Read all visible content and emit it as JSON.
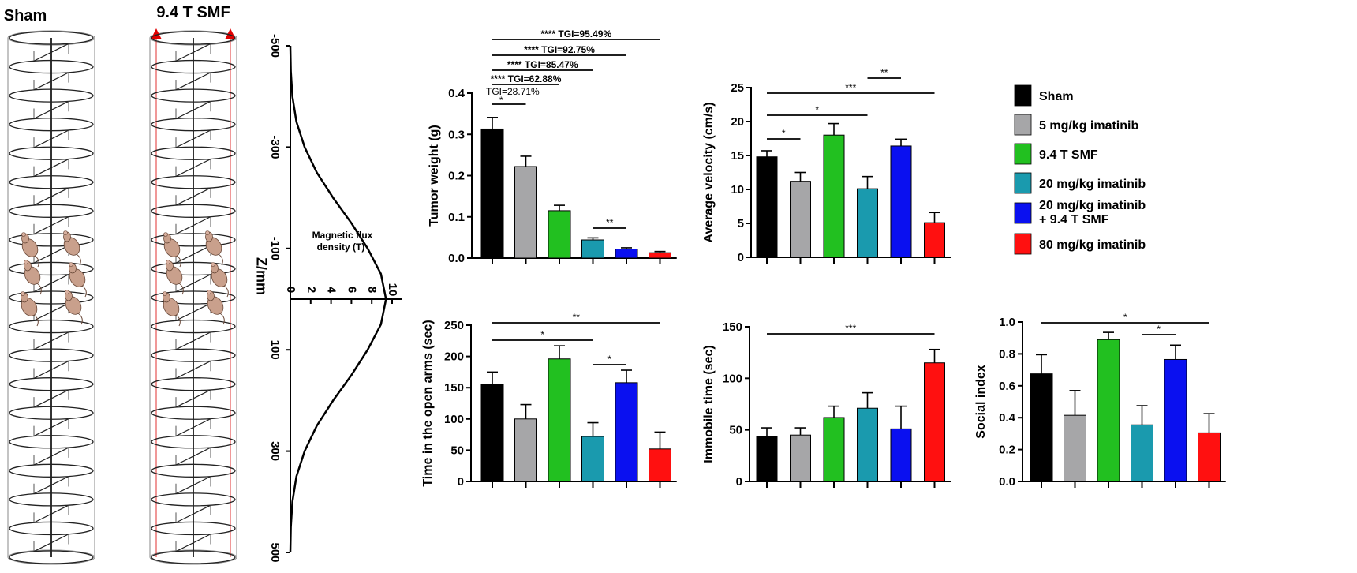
{
  "colors": {
    "Sham": "#000000",
    "5 mg/kg imatinib": "#a6a6a8",
    "9.4 T SMF": "#22c020",
    "20 mg/kg imatinib": "#1a9aae",
    "20 mg/kg imatinib + 9.4 T SMF": "#0a10f0",
    "80 mg/kg imatinib": "#ff1010"
  },
  "legend": [
    {
      "label": "Sham",
      "color": "#000000"
    },
    {
      "label": "5 mg/kg imatinib",
      "color": "#a6a6a8"
    },
    {
      "label": "9.4 T SMF",
      "color": "#22c020"
    },
    {
      "label": "20 mg/kg imatinib",
      "color": "#1a9aae"
    },
    {
      "label": "20 mg/kg imatinib",
      "label2": "+ 9.4 T SMF",
      "color": "#0a10f0"
    },
    {
      "label": "80 mg/kg imatinib",
      "color": "#ff1010"
    }
  ],
  "coil": {
    "sham_label": "Sham",
    "smf_label": "9.4 T SMF"
  },
  "chart_data": [
    {
      "id": "flux",
      "type": "line",
      "ylabel": "Z/mm",
      "xlabel": "Magnetic flux density (T)",
      "xlabel_lines": [
        "Magnetic flux",
        "density (T)"
      ],
      "y_ticks": [
        -500,
        -300,
        -100,
        100,
        300,
        500
      ],
      "x_ticks": [
        0,
        2,
        4,
        6,
        8,
        10
      ],
      "ylim": [
        -500,
        500
      ],
      "xlim": [
        0,
        10
      ],
      "curve_peak": 9.4,
      "curve": [
        {
          "z": -500,
          "b": 0.0
        },
        {
          "z": -450,
          "b": 0.05
        },
        {
          "z": -400,
          "b": 0.2
        },
        {
          "z": -350,
          "b": 0.6
        },
        {
          "z": -300,
          "b": 1.4
        },
        {
          "z": -250,
          "b": 2.6
        },
        {
          "z": -200,
          "b": 4.2
        },
        {
          "z": -150,
          "b": 6.0
        },
        {
          "z": -100,
          "b": 7.6
        },
        {
          "z": -50,
          "b": 8.9
        },
        {
          "z": 0,
          "b": 9.4
        },
        {
          "z": 50,
          "b": 8.9
        },
        {
          "z": 100,
          "b": 7.6
        },
        {
          "z": 150,
          "b": 6.0
        },
        {
          "z": 200,
          "b": 4.2
        },
        {
          "z": 250,
          "b": 2.6
        },
        {
          "z": 300,
          "b": 1.4
        },
        {
          "z": 350,
          "b": 0.6
        },
        {
          "z": 400,
          "b": 0.2
        },
        {
          "z": 450,
          "b": 0.05
        },
        {
          "z": 500,
          "b": 0.0
        }
      ]
    },
    {
      "id": "tumor",
      "type": "bar",
      "ylabel": "Tumor weight (g)",
      "ylim": [
        0,
        0.4
      ],
      "y_ticks": [
        "0.0",
        "0.1",
        "0.2",
        "0.3",
        "0.4"
      ],
      "categories": [
        "Sham",
        "5 mg/kg imatinib",
        "9.4 T SMF",
        "20 mg/kg imatinib",
        "20 mg/kg imatinib + 9.4 T SMF",
        "80 mg/kg imatinib"
      ],
      "values": [
        0.313,
        0.222,
        0.115,
        0.044,
        0.022,
        0.013
      ],
      "errors": [
        0.028,
        0.025,
        0.013,
        0.005,
        0.003,
        0.003
      ],
      "annotations": [
        {
          "from": 0,
          "to": 1,
          "text": "*",
          "note": "TGI=28.71%"
        },
        {
          "from": 0,
          "to": 2,
          "text": "****",
          "note": "TGI=62.88%"
        },
        {
          "from": 0,
          "to": 3,
          "text": "****",
          "note": "TGI=85.47%"
        },
        {
          "from": 0,
          "to": 4,
          "text": "****",
          "note": "TGI=92.75%"
        },
        {
          "from": 0,
          "to": 5,
          "text": "****",
          "note": "TGI=95.49%"
        },
        {
          "from": 3,
          "to": 4,
          "text": "**",
          "note": ""
        }
      ]
    },
    {
      "id": "velocity",
      "type": "bar",
      "ylabel": "Average velocity (cm/s)",
      "ylim": [
        0,
        25
      ],
      "y_ticks": [
        "0",
        "5",
        "10",
        "15",
        "20",
        "25"
      ],
      "categories": [
        "Sham",
        "5 mg/kg imatinib",
        "9.4 T SMF",
        "20 mg/kg imatinib",
        "20 mg/kg imatinib + 9.4 T SMF",
        "80 mg/kg imatinib"
      ],
      "values": [
        14.8,
        11.2,
        18.0,
        10.1,
        16.4,
        5.1
      ],
      "errors": [
        0.9,
        1.3,
        1.7,
        1.8,
        1.0,
        1.5
      ],
      "annotations": [
        {
          "from": 0,
          "to": 1,
          "text": "*",
          "note": ""
        },
        {
          "from": 0,
          "to": 3,
          "text": "*",
          "note": ""
        },
        {
          "from": 0,
          "to": 5,
          "text": "***",
          "note": ""
        },
        {
          "from": 3,
          "to": 4,
          "text": "**",
          "note": ""
        }
      ]
    },
    {
      "id": "openarms",
      "type": "bar",
      "ylabel": "Time in the open arms (sec)",
      "ylim": [
        0,
        250
      ],
      "y_ticks": [
        "0",
        "50",
        "100",
        "150",
        "200",
        "250"
      ],
      "categories": [
        "Sham",
        "5 mg/kg imatinib",
        "9.4 T SMF",
        "20 mg/kg imatinib",
        "20 mg/kg imatinib + 9.4 T SMF",
        "80 mg/kg imatinib"
      ],
      "values": [
        155,
        100,
        196,
        72,
        158,
        52
      ],
      "errors": [
        20,
        23,
        21,
        22,
        20,
        27
      ],
      "annotations": [
        {
          "from": 0,
          "to": 3,
          "text": "*",
          "note": ""
        },
        {
          "from": 0,
          "to": 5,
          "text": "**",
          "note": ""
        },
        {
          "from": 3,
          "to": 4,
          "text": "*",
          "note": ""
        }
      ]
    },
    {
      "id": "immobile",
      "type": "bar",
      "ylabel": "Immobile time (sec)",
      "ylim": [
        0,
        150
      ],
      "y_ticks": [
        "0",
        "50",
        "100",
        "150"
      ],
      "categories": [
        "Sham",
        "5 mg/kg imatinib",
        "9.4 T SMF",
        "20 mg/kg imatinib",
        "20 mg/kg imatinib + 9.4 T SMF",
        "80 mg/kg imatinib"
      ],
      "values": [
        44,
        45,
        62,
        71,
        51,
        115
      ],
      "errors": [
        8,
        7,
        11,
        15,
        22,
        13
      ],
      "annotations": [
        {
          "from": 0,
          "to": 5,
          "text": "***",
          "note": ""
        }
      ]
    },
    {
      "id": "social",
      "type": "bar",
      "ylabel": "Social index",
      "ylim": [
        0,
        1.0
      ],
      "y_ticks": [
        "0.0",
        "0.2",
        "0.4",
        "0.6",
        "0.8",
        "1.0"
      ],
      "categories": [
        "Sham",
        "5 mg/kg imatinib",
        "9.4 T SMF",
        "20 mg/kg imatinib",
        "20 mg/kg imatinib + 9.4 T SMF",
        "80 mg/kg imatinib"
      ],
      "values": [
        0.675,
        0.415,
        0.89,
        0.355,
        0.765,
        0.305
      ],
      "errors": [
        0.12,
        0.155,
        0.045,
        0.12,
        0.09,
        0.12
      ],
      "annotations": [
        {
          "from": 0,
          "to": 5,
          "text": "*",
          "note": ""
        },
        {
          "from": 3,
          "to": 4,
          "text": "*",
          "note": ""
        }
      ]
    }
  ]
}
